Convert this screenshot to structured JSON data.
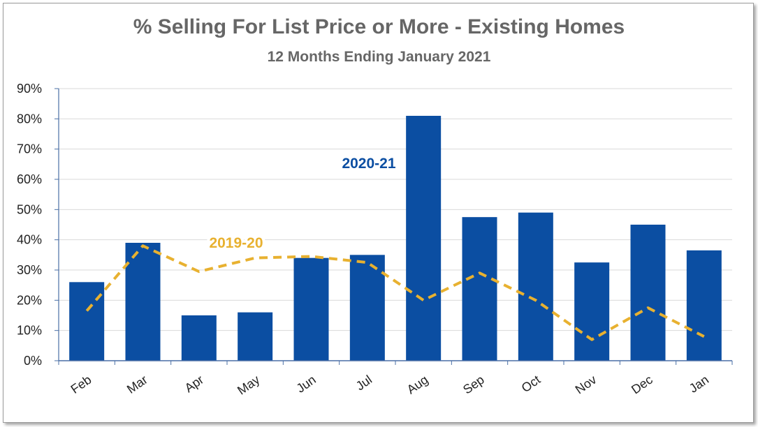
{
  "chart_data": {
    "type": "bar",
    "title": "% Selling For List Price or More - Existing Homes",
    "subtitle": "12 Months Ending January 2021",
    "categories": [
      "Feb",
      "Mar",
      "Apr",
      "May",
      "Jun",
      "Jul",
      "Aug",
      "Sep",
      "Oct",
      "Nov",
      "Dec",
      "Jan"
    ],
    "series": [
      {
        "name": "2020-21",
        "kind": "bar",
        "color": "#0b4ea2",
        "values": [
          26,
          39,
          15,
          16,
          34,
          35,
          81,
          47.5,
          49,
          32.5,
          45,
          36.5
        ]
      },
      {
        "name": "2019-20",
        "kind": "line",
        "style": "dashed",
        "color": "#e8b130",
        "values": [
          16.5,
          38,
          29.5,
          34,
          34.5,
          32.5,
          20,
          29,
          20,
          7,
          17.5,
          8
        ]
      }
    ],
    "ylim": [
      0,
      90
    ],
    "yticks": [
      0,
      10,
      20,
      30,
      40,
      50,
      60,
      70,
      80,
      90
    ],
    "ytick_labels": [
      "0%",
      "10%",
      "20%",
      "30%",
      "40%",
      "50%",
      "60%",
      "70%",
      "80%",
      "90%"
    ],
    "grid": true,
    "legend": "inline labels"
  }
}
